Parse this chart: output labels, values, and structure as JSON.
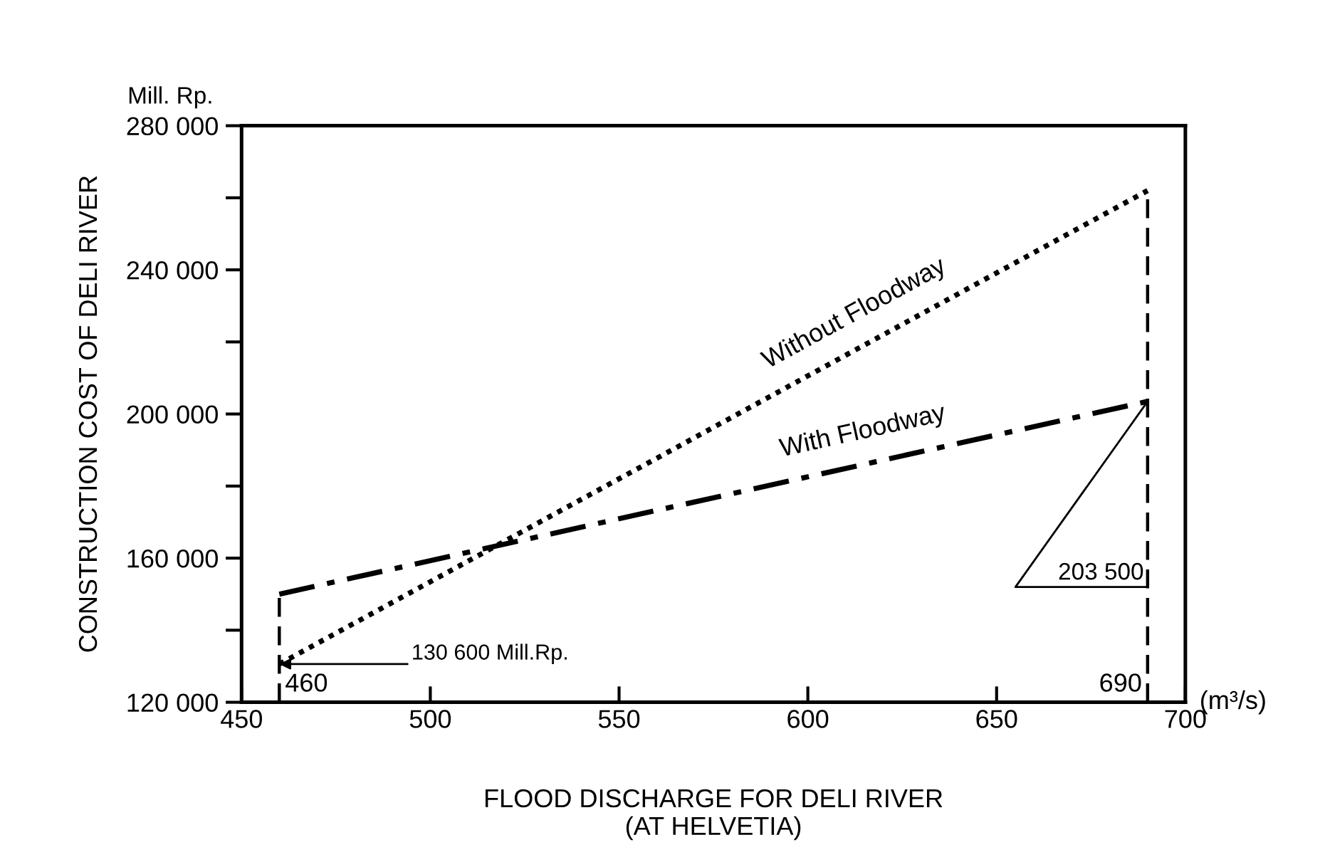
{
  "chart_data": {
    "type": "line",
    "xlabel": "FLOOD DISCHARGE FOR DELI RIVER\n(AT HELVETIA)",
    "ylabel": "CONSTRUCTION COST OF DELI RIVER",
    "x": [
      460,
      690
    ],
    "series": [
      {
        "name": "Without Floodway",
        "color": "#000000",
        "values": [
          130600,
          262000
        ],
        "line_style": "dotted"
      },
      {
        "name": "With Floodway",
        "color": "#000000",
        "values": [
          150000,
          203500
        ],
        "line_style": "dashdot"
      }
    ],
    "xlim": [
      450,
      700
    ],
    "xticks": [
      450,
      500,
      550,
      600,
      650,
      700
    ],
    "ylim": [
      120000,
      280000
    ],
    "yticks": [
      {
        "value": 120000,
        "label": "120 000"
      },
      {
        "value": 140000,
        "label": null
      },
      {
        "value": 160000,
        "label": "160 000"
      },
      {
        "value": 180000,
        "label": null
      },
      {
        "value": 200000,
        "label": "200 000"
      },
      {
        "value": 220000,
        "label": null
      },
      {
        "value": 240000,
        "label": "240 000"
      },
      {
        "value": 260000,
        "label": null
      },
      {
        "value": 280000,
        "label": "280 000"
      }
    ],
    "ref_lines": [
      {
        "axis": "x",
        "value": 460,
        "label": "460",
        "line_style": "dashed"
      },
      {
        "axis": "x",
        "value": 690,
        "label": "690",
        "line_style": "dashed"
      }
    ],
    "annotations": [
      {
        "text": "130 600 Mill.Rp.",
        "x": 460,
        "y": 130600
      },
      {
        "text": "203 500",
        "x": 690,
        "y": 203500
      },
      "Mill. Rp.",
      "(m³/s)"
    ],
    "legend": false,
    "grid": false,
    "marker": "none"
  }
}
